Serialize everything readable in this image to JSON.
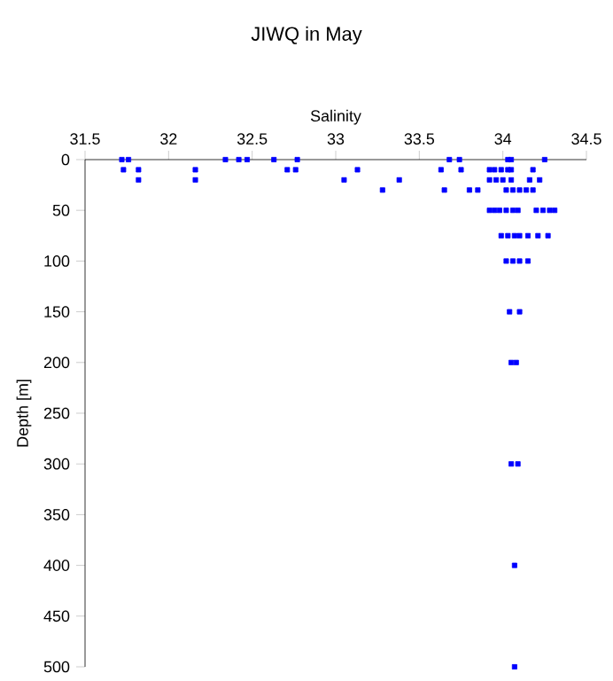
{
  "chart_data": {
    "type": "scatter",
    "title": "JIWQ in May",
    "xlabel": "Salinity",
    "ylabel": "Depth [m]",
    "xlim": [
      31.5,
      34.5
    ],
    "xticks": [
      31.5,
      32,
      32.5,
      33,
      33.5,
      34,
      34.5
    ],
    "ylim": [
      500,
      0
    ],
    "yticks": [
      0,
      50,
      100,
      150,
      200,
      250,
      300,
      350,
      400,
      450,
      500
    ],
    "marker": "square",
    "grid": false,
    "series": [
      {
        "color": "#0000ff",
        "x": [
          31.72,
          31.76,
          32.34,
          32.42,
          32.47,
          32.63,
          32.77,
          33.68,
          33.74,
          34.03,
          34.05,
          34.25,
          31.73,
          31.82,
          32.16,
          32.71,
          32.76,
          33.13,
          33.63,
          33.75,
          33.92,
          33.95,
          33.99,
          34.03,
          34.05,
          34.18,
          31.82,
          32.16,
          33.05,
          33.38,
          33.92,
          33.96,
          34.0,
          34.05,
          34.16,
          34.22,
          33.28,
          33.65,
          33.8,
          33.85,
          34.02,
          34.06,
          34.1,
          34.14,
          34.18,
          33.92,
          33.95,
          33.98,
          34.02,
          34.06,
          34.09,
          34.2,
          34.24,
          34.28,
          34.31,
          33.99,
          34.03,
          34.07,
          34.1,
          34.15,
          34.21,
          34.27,
          34.02,
          34.06,
          34.1,
          34.15,
          34.04,
          34.1,
          34.05,
          34.08,
          34.05,
          34.09,
          34.07,
          34.07
        ],
        "values": [
          0,
          0,
          0,
          0,
          0,
          0,
          0,
          0,
          0,
          0,
          0,
          0,
          10,
          10,
          10,
          10,
          10,
          10,
          10,
          10,
          10,
          10,
          10,
          10,
          10,
          10,
          20,
          20,
          20,
          20,
          20,
          20,
          20,
          20,
          20,
          20,
          30,
          30,
          30,
          30,
          30,
          30,
          30,
          30,
          30,
          50,
          50,
          50,
          50,
          50,
          50,
          50,
          50,
          50,
          50,
          75,
          75,
          75,
          75,
          75,
          75,
          75,
          100,
          100,
          100,
          100,
          150,
          150,
          200,
          200,
          300,
          300,
          400,
          500
        ]
      }
    ]
  }
}
